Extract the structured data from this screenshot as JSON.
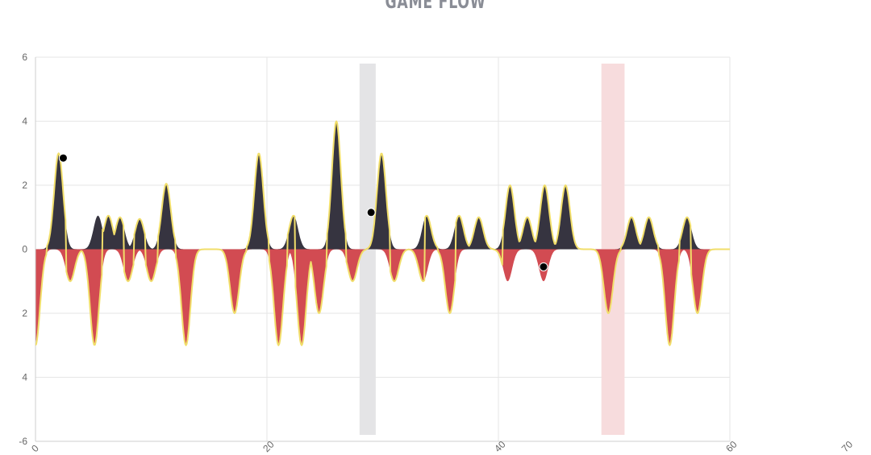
{
  "title": "GAME FLOW",
  "chart_data": {
    "type": "area",
    "title": "GAME FLOW",
    "xlim": [
      0,
      60
    ],
    "ylim": [
      -6,
      6
    ],
    "y_ticks": [
      6,
      4,
      2,
      0,
      -2,
      -4,
      -6
    ],
    "y_tick_labels": [
      "6",
      "4",
      "2",
      "0",
      "2",
      "4",
      "-6"
    ],
    "x_ticks": [
      0,
      20,
      40,
      60,
      70
    ],
    "x_tick_labels": [
      "0",
      "20",
      "40",
      "60",
      "70"
    ],
    "grid": true,
    "colors": {
      "positive": "#363440",
      "negative": "#d24b52",
      "line": "#f1de6a",
      "band_gray": "#e4e4e6",
      "band_pink": "#f7dcdd",
      "marker": "#000000",
      "grid": "#e6e6e6"
    },
    "bands": [
      {
        "x0": 28,
        "x1": 29.4,
        "kind": "gray"
      },
      {
        "x0": 48.9,
        "x1": 50.9,
        "kind": "pink"
      }
    ],
    "markers": [
      {
        "x": 2.4,
        "y": 2.85
      },
      {
        "x": 29.0,
        "y": 1.15
      },
      {
        "x": 43.9,
        "y": -0.55
      }
    ],
    "positive_peaks": [
      {
        "x": 2.0,
        "y": 3.0
      },
      {
        "x": 5.4,
        "y": 1.05
      },
      {
        "x": 6.3,
        "y": 1.05
      },
      {
        "x": 7.3,
        "y": 1.0
      },
      {
        "x": 9.0,
        "y": 0.95
      },
      {
        "x": 11.3,
        "y": 2.05
      },
      {
        "x": 19.3,
        "y": 3.0
      },
      {
        "x": 22.3,
        "y": 1.05
      },
      {
        "x": 26.0,
        "y": 4.0
      },
      {
        "x": 29.9,
        "y": 3.0
      },
      {
        "x": 33.8,
        "y": 1.05
      },
      {
        "x": 36.6,
        "y": 1.05
      },
      {
        "x": 38.3,
        "y": 1.0
      },
      {
        "x": 41.0,
        "y": 2.0
      },
      {
        "x": 42.5,
        "y": 1.0
      },
      {
        "x": 44.0,
        "y": 2.0
      },
      {
        "x": 45.8,
        "y": 2.0
      },
      {
        "x": 51.5,
        "y": 1.0
      },
      {
        "x": 53.0,
        "y": 1.0
      },
      {
        "x": 56.3,
        "y": 1.0
      }
    ],
    "negative_peaks": [
      {
        "x": 0.0,
        "y": -3.0
      },
      {
        "x": 3.0,
        "y": -1.0
      },
      {
        "x": 5.1,
        "y": -3.0
      },
      {
        "x": 8.0,
        "y": -1.0
      },
      {
        "x": 10.0,
        "y": -1.0
      },
      {
        "x": 13.0,
        "y": -3.0
      },
      {
        "x": 17.2,
        "y": -2.0
      },
      {
        "x": 21.0,
        "y": -3.0
      },
      {
        "x": 23.0,
        "y": -3.0
      },
      {
        "x": 24.5,
        "y": -2.0
      },
      {
        "x": 27.4,
        "y": -1.0
      },
      {
        "x": 31.0,
        "y": -1.0
      },
      {
        "x": 33.5,
        "y": -1.0
      },
      {
        "x": 35.8,
        "y": -2.0
      },
      {
        "x": 40.8,
        "y": -1.0
      },
      {
        "x": 43.9,
        "y": -1.0
      },
      {
        "x": 49.5,
        "y": -2.0
      },
      {
        "x": 54.8,
        "y": -3.0
      },
      {
        "x": 57.2,
        "y": -2.0
      }
    ]
  }
}
